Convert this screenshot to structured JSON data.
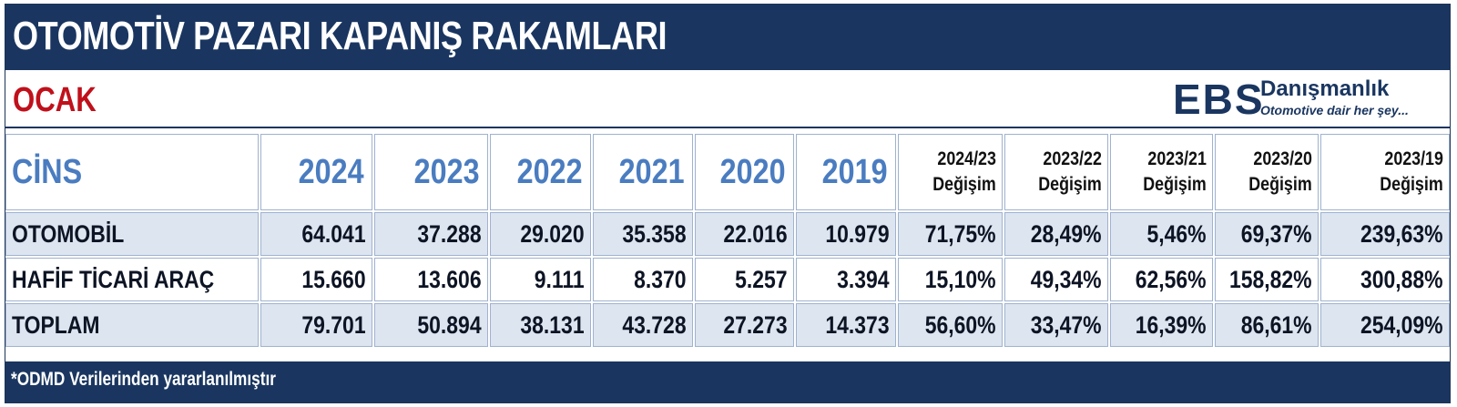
{
  "header": {
    "title": "OTOMOTİV PAZARI KAPANIŞ RAKAMLARI",
    "month": "OCAK"
  },
  "logo": {
    "mark": "EBS",
    "name": "Danışmanlık",
    "tagline": "Otomotive dair her şey..."
  },
  "table": {
    "columns": [
      {
        "label": "CİNS"
      },
      {
        "label": "2024"
      },
      {
        "label": "2023"
      },
      {
        "label": "2022"
      },
      {
        "label": "2021"
      },
      {
        "label": "2020"
      },
      {
        "label": "2019"
      },
      {
        "line1": "2024/23",
        "line2": "Değişim"
      },
      {
        "line1": "2023/22",
        "line2": "Değişim"
      },
      {
        "line1": "2023/21",
        "line2": "Değişim"
      },
      {
        "line1": "2023/20",
        "line2": "Değişim"
      },
      {
        "line1": "2023/19",
        "line2": "Değişim"
      }
    ],
    "rows": [
      {
        "cells": [
          "OTOMOBİL",
          "64.041",
          "37.288",
          "29.020",
          "35.358",
          "22.016",
          "10.979",
          "71,75%",
          "28,49%",
          "5,46%",
          "69,37%",
          "239,63%"
        ]
      },
      {
        "cells": [
          "HAFİF TİCARİ ARAÇ",
          "15.660",
          "13.606",
          "9.111",
          "8.370",
          "5.257",
          "3.394",
          "15,10%",
          "49,34%",
          "62,56%",
          "158,82%",
          "300,88%"
        ]
      },
      {
        "cells": [
          "TOPLAM",
          "79.701",
          "50.894",
          "38.131",
          "43.728",
          "27.273",
          "14.373",
          "56,60%",
          "33,47%",
          "16,39%",
          "86,61%",
          "254,09%"
        ]
      }
    ]
  },
  "footer": {
    "note": "*ODMD Verilerinden yararlanılmıştır"
  },
  "colors": {
    "navy": "#1a3660",
    "accent_red": "#c0101b",
    "header_blue": "#4a7cc0",
    "row_shade": "#dde5f0"
  }
}
